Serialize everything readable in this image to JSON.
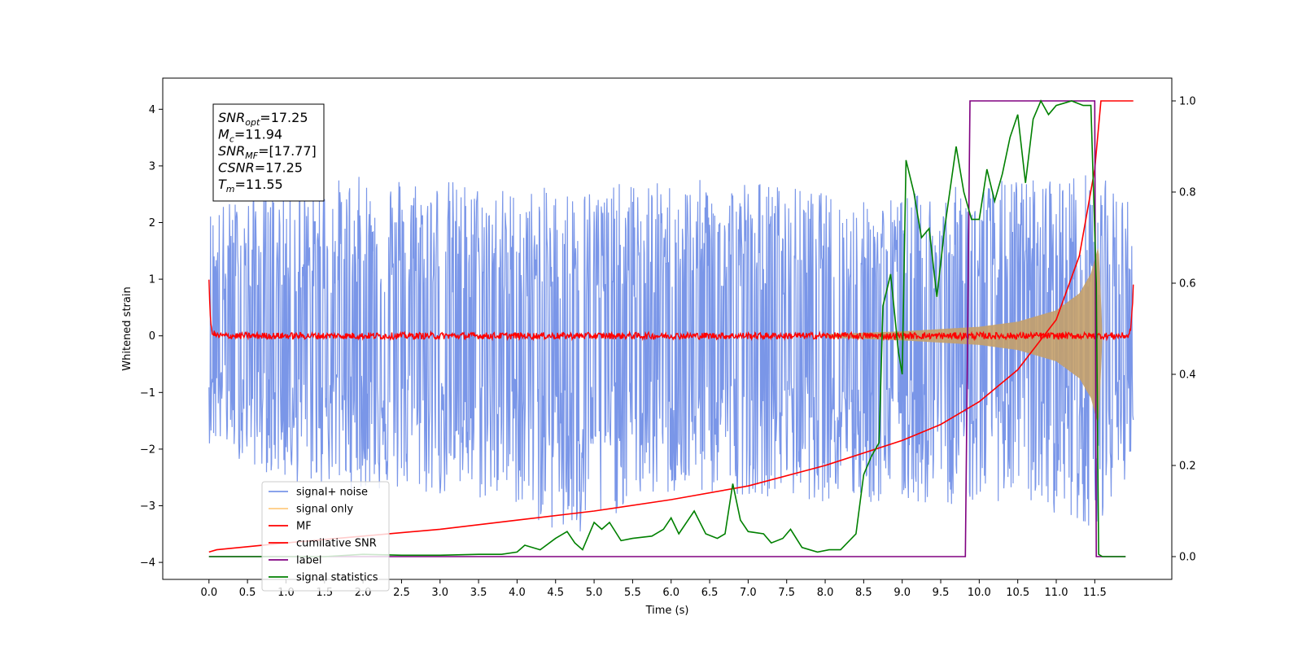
{
  "chart_data": {
    "type": "line",
    "xlabel": "Time (s)",
    "ylabel": "Whitened strain",
    "xlim": [
      -0.6,
      12.5
    ],
    "ylim_left": [
      -4.3,
      4.55
    ],
    "ylim_right": [
      -0.05,
      1.05
    ],
    "x_ticks": [
      "0.0",
      "0.5",
      "1.0",
      "1.5",
      "2.0",
      "2.5",
      "3.0",
      "3.5",
      "4.0",
      "4.5",
      "5.0",
      "5.5",
      "6.0",
      "6.5",
      "7.0",
      "7.5",
      "8.0",
      "8.5",
      "9.0",
      "9.5",
      "10.0",
      "10.5",
      "11.0",
      "11.5"
    ],
    "y_ticks_left": [
      "4",
      "3",
      "2",
      "1",
      "0",
      "−1",
      "−2",
      "−3",
      "−4"
    ],
    "y_ticks_right": [
      "1.0",
      "0.8",
      "0.6",
      "0.4",
      "0.2",
      "0.0"
    ],
    "legend_location": "lower-left",
    "legend": [
      {
        "label": "signal+ noise",
        "color": "#7a96e8"
      },
      {
        "label": "signal only",
        "color": "#ffcc80"
      },
      {
        "label": "MF",
        "color": "#ff0000"
      },
      {
        "label": "cumilative SNR",
        "color": "#ff0000"
      },
      {
        "label": "label",
        "color": "#800080"
      },
      {
        "label": "signal statistics",
        "color": "#008000"
      }
    ],
    "annotation": [
      {
        "main": "SNR",
        "sub": "opt",
        "value": "=17.25"
      },
      {
        "main": "M",
        "sub": "c",
        "value": "=11.94"
      },
      {
        "main": "SNR",
        "sub": "MF",
        "value": "=[17.77]"
      },
      {
        "main": "CSNR",
        "sub": "",
        "value": "=17.25"
      },
      {
        "main": "T",
        "sub": "m",
        "value": "=11.55"
      }
    ],
    "series": [
      {
        "name": "signal+ noise",
        "axis": "left",
        "color": "#7a96e8",
        "style": "noise band",
        "x_range": [
          0.0,
          12.0
        ],
        "envelope_upper": [
          [
            0.0,
            2.3
          ],
          [
            1.0,
            2.7
          ],
          [
            2.5,
            2.9
          ],
          [
            4.0,
            2.6
          ],
          [
            5.5,
            2.7
          ],
          [
            7.0,
            2.8
          ],
          [
            8.5,
            2.4
          ],
          [
            9.5,
            2.6
          ],
          [
            10.5,
            2.8
          ],
          [
            11.5,
            2.9
          ],
          [
            12.0,
            2.4
          ]
        ],
        "envelope_lower": [
          [
            0.0,
            -1.9
          ],
          [
            1.0,
            -2.6
          ],
          [
            2.5,
            -2.8
          ],
          [
            4.0,
            -3.0
          ],
          [
            4.75,
            -3.8
          ],
          [
            5.5,
            -2.9
          ],
          [
            7.0,
            -2.8
          ],
          [
            8.5,
            -3.0
          ],
          [
            9.5,
            -3.0
          ],
          [
            10.5,
            -2.9
          ],
          [
            11.5,
            -3.4
          ],
          [
            12.0,
            -2.3
          ]
        ]
      },
      {
        "name": "signal only",
        "axis": "left",
        "color": "#c4a06a",
        "style": "chirp envelope",
        "amplitude": [
          [
            8.0,
            0.03
          ],
          [
            9.0,
            0.08
          ],
          [
            10.0,
            0.16
          ],
          [
            10.5,
            0.25
          ],
          [
            11.0,
            0.45
          ],
          [
            11.3,
            0.75
          ],
          [
            11.45,
            1.1
          ],
          [
            11.55,
            1.6
          ],
          [
            11.6,
            0.0
          ]
        ]
      },
      {
        "name": "MF",
        "axis": "left",
        "color": "#ff0000",
        "style": "noisy line",
        "points": [
          [
            0.0,
            1.0
          ],
          [
            0.02,
            0.2
          ],
          [
            0.05,
            0.05
          ],
          [
            0.1,
            0.0
          ],
          [
            11.95,
            0.0
          ],
          [
            11.98,
            0.3
          ],
          [
            12.0,
            0.85
          ]
        ]
      },
      {
        "name": "cumilative SNR",
        "axis": "right",
        "color": "#ff0000",
        "points": [
          [
            0.0,
            0.01
          ],
          [
            0.1,
            0.015
          ],
          [
            1.0,
            0.03
          ],
          [
            2.0,
            0.045
          ],
          [
            3.0,
            0.06
          ],
          [
            4.0,
            0.08
          ],
          [
            5.0,
            0.1
          ],
          [
            6.0,
            0.125
          ],
          [
            7.0,
            0.155
          ],
          [
            8.0,
            0.2
          ],
          [
            9.0,
            0.255
          ],
          [
            9.5,
            0.29
          ],
          [
            10.0,
            0.34
          ],
          [
            10.5,
            0.41
          ],
          [
            11.0,
            0.52
          ],
          [
            11.3,
            0.66
          ],
          [
            11.5,
            0.85
          ],
          [
            11.58,
            1.0
          ],
          [
            12.0,
            1.0
          ]
        ]
      },
      {
        "name": "label",
        "axis": "right",
        "color": "#800080",
        "points": [
          [
            0.0,
            0.0
          ],
          [
            9.82,
            0.0
          ],
          [
            9.88,
            1.0
          ],
          [
            11.5,
            1.0
          ],
          [
            11.52,
            0.0
          ],
          [
            11.9,
            0.0
          ]
        ]
      },
      {
        "name": "signal statistics",
        "axis": "right",
        "color": "#008000",
        "points": [
          [
            0.0,
            0.0
          ],
          [
            0.5,
            0.0
          ],
          [
            1.0,
            0.0
          ],
          [
            1.5,
            0.0
          ],
          [
            2.0,
            0.005
          ],
          [
            2.5,
            0.003
          ],
          [
            3.0,
            0.003
          ],
          [
            3.5,
            0.005
          ],
          [
            3.8,
            0.005
          ],
          [
            4.0,
            0.01
          ],
          [
            4.1,
            0.025
          ],
          [
            4.3,
            0.015
          ],
          [
            4.5,
            0.04
          ],
          [
            4.65,
            0.055
          ],
          [
            4.75,
            0.03
          ],
          [
            4.85,
            0.015
          ],
          [
            5.0,
            0.075
          ],
          [
            5.1,
            0.06
          ],
          [
            5.2,
            0.075
          ],
          [
            5.35,
            0.035
          ],
          [
            5.5,
            0.04
          ],
          [
            5.75,
            0.045
          ],
          [
            5.9,
            0.06
          ],
          [
            6.0,
            0.085
          ],
          [
            6.1,
            0.05
          ],
          [
            6.3,
            0.1
          ],
          [
            6.45,
            0.05
          ],
          [
            6.6,
            0.04
          ],
          [
            6.7,
            0.05
          ],
          [
            6.8,
            0.16
          ],
          [
            6.9,
            0.08
          ],
          [
            7.0,
            0.055
          ],
          [
            7.2,
            0.05
          ],
          [
            7.3,
            0.03
          ],
          [
            7.45,
            0.04
          ],
          [
            7.55,
            0.06
          ],
          [
            7.7,
            0.02
          ],
          [
            7.9,
            0.01
          ],
          [
            8.05,
            0.015
          ],
          [
            8.2,
            0.015
          ],
          [
            8.4,
            0.05
          ],
          [
            8.5,
            0.18
          ],
          [
            8.6,
            0.22
          ],
          [
            8.7,
            0.25
          ],
          [
            8.75,
            0.55
          ],
          [
            8.85,
            0.62
          ],
          [
            8.95,
            0.45
          ],
          [
            9.0,
            0.4
          ],
          [
            9.05,
            0.87
          ],
          [
            9.15,
            0.8
          ],
          [
            9.25,
            0.7
          ],
          [
            9.35,
            0.72
          ],
          [
            9.45,
            0.57
          ],
          [
            9.55,
            0.72
          ],
          [
            9.7,
            0.9
          ],
          [
            9.8,
            0.8
          ],
          [
            9.9,
            0.74
          ],
          [
            10.0,
            0.74
          ],
          [
            10.1,
            0.85
          ],
          [
            10.2,
            0.78
          ],
          [
            10.3,
            0.84
          ],
          [
            10.4,
            0.92
          ],
          [
            10.5,
            0.97
          ],
          [
            10.6,
            0.82
          ],
          [
            10.7,
            0.96
          ],
          [
            10.8,
            1.0
          ],
          [
            10.9,
            0.97
          ],
          [
            11.0,
            0.99
          ],
          [
            11.1,
            0.995
          ],
          [
            11.2,
            1.0
          ],
          [
            11.35,
            0.99
          ],
          [
            11.45,
            0.99
          ],
          [
            11.52,
            0.6
          ],
          [
            11.55,
            0.005
          ],
          [
            11.6,
            0.0
          ],
          [
            11.9,
            0.0
          ]
        ]
      }
    ]
  }
}
